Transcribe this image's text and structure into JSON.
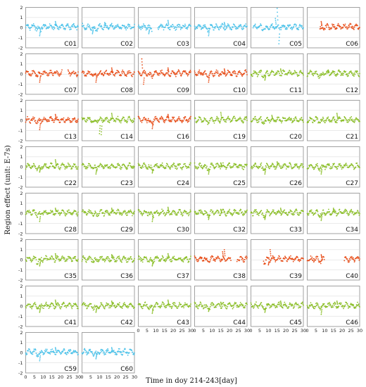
{
  "chart_data": {
    "type": "scatter",
    "xlabel": "Time in doy 214-243[day]",
    "ylabel": "Region effect (unit: E-7s)",
    "xlim": [
      0,
      30
    ],
    "ylim": [
      -2,
      2
    ],
    "x_ticks": [
      "0",
      "5",
      "10",
      "15",
      "20",
      "25",
      "30"
    ],
    "y_ticks": [
      "2",
      "1",
      "0",
      "-1",
      "-2"
    ],
    "grid": true,
    "layout": {
      "rows": 8,
      "cols": 6
    },
    "colors": {
      "blue": "#4ec3ea",
      "red": "#e8501c",
      "green": "#8cbf2a"
    },
    "panels": [
      {
        "label": "C01",
        "color": "blue",
        "gaps": [],
        "spikes": [
          [
            8,
            -0.8
          ],
          [
            17,
            0.6
          ]
        ]
      },
      {
        "label": "C02",
        "color": "blue",
        "gaps": [],
        "spikes": [
          [
            6,
            -0.6
          ],
          [
            13,
            0.5
          ]
        ]
      },
      {
        "label": "C03",
        "color": "blue",
        "gaps": [
          [
            8,
            11
          ]
        ],
        "spikes": [
          [
            6,
            -0.6
          ],
          [
            17,
            0.7
          ]
        ]
      },
      {
        "label": "C04",
        "color": "blue",
        "gaps": [],
        "spikes": [
          [
            8,
            -0.8
          ],
          [
            17,
            0.5
          ]
        ]
      },
      {
        "label": "C05",
        "color": "blue",
        "gaps": [
          [
            0,
            1
          ]
        ],
        "spikes": [
          [
            15,
            1.9
          ],
          [
            16,
            -1.6
          ],
          [
            14,
            0.9
          ]
        ]
      },
      {
        "label": "C06",
        "color": "red",
        "gaps": [
          [
            0,
            7
          ]
        ],
        "spikes": [
          [
            8,
            0.6
          ]
        ]
      },
      {
        "label": "C07",
        "color": "red",
        "gaps": [
          [
            21,
            24
          ]
        ],
        "spikes": [
          [
            8,
            -0.8
          ]
        ]
      },
      {
        "label": "C08",
        "color": "red",
        "gaps": [],
        "spikes": [
          [
            8,
            -0.8
          ],
          [
            17,
            0.6
          ]
        ]
      },
      {
        "label": "C09",
        "color": "red",
        "gaps": [],
        "spikes": [
          [
            2,
            1.5
          ],
          [
            3,
            -1.0
          ],
          [
            17,
            0.6
          ]
        ]
      },
      {
        "label": "C10",
        "color": "red",
        "gaps": [],
        "spikes": [
          [
            8,
            -0.8
          ],
          [
            17,
            0.5
          ]
        ]
      },
      {
        "label": "C11",
        "color": "green",
        "gaps": [],
        "spikes": [
          [
            8,
            -0.6
          ],
          [
            17,
            0.5
          ]
        ]
      },
      {
        "label": "C12",
        "color": "green",
        "gaps": [],
        "spikes": [
          [
            12,
            0.4
          ]
        ]
      },
      {
        "label": "C13",
        "color": "red",
        "gaps": [],
        "spikes": [
          [
            8,
            -0.9
          ],
          [
            17,
            0.6
          ]
        ]
      },
      {
        "label": "C14",
        "color": "green",
        "gaps": [],
        "spikes": [
          [
            10,
            -1.3
          ],
          [
            11,
            -1.4
          ],
          [
            17,
            0.7
          ]
        ]
      },
      {
        "label": "C16",
        "color": "red",
        "gaps": [],
        "spikes": [
          [
            8,
            -0.8
          ],
          [
            17,
            0.6
          ]
        ]
      },
      {
        "label": "C19",
        "color": "green",
        "gaps": [],
        "spikes": [
          [
            15,
            0.8
          ]
        ]
      },
      {
        "label": "C20",
        "color": "green",
        "gaps": [],
        "spikes": [
          [
            12,
            0.5
          ]
        ]
      },
      {
        "label": "C21",
        "color": "green",
        "gaps": [],
        "spikes": [
          [
            17,
            0.7
          ]
        ]
      },
      {
        "label": "C22",
        "color": "green",
        "gaps": [],
        "spikes": [
          [
            17,
            0.7
          ],
          [
            8,
            -0.5
          ]
        ]
      },
      {
        "label": "C23",
        "color": "green",
        "gaps": [],
        "spikes": [
          [
            8,
            -0.7
          ]
        ]
      },
      {
        "label": "C24",
        "color": "green",
        "gaps": [],
        "spikes": [
          [
            8,
            -0.6
          ]
        ]
      },
      {
        "label": "C25",
        "color": "green",
        "gaps": [],
        "spikes": [
          [
            8,
            -0.7
          ],
          [
            15,
            0.4
          ]
        ]
      },
      {
        "label": "C26",
        "color": "green",
        "gaps": [],
        "spikes": [
          [
            8,
            -0.7
          ],
          [
            15,
            0.5
          ]
        ]
      },
      {
        "label": "C27",
        "color": "green",
        "gaps": [],
        "spikes": [
          [
            8,
            -0.7
          ]
        ]
      },
      {
        "label": "C28",
        "color": "green",
        "gaps": [],
        "spikes": [
          [
            8,
            -0.8
          ],
          [
            17,
            0.5
          ]
        ]
      },
      {
        "label": "C29",
        "color": "green",
        "gaps": [],
        "spikes": [
          [
            17,
            0.5
          ]
        ]
      },
      {
        "label": "C30",
        "color": "green",
        "gaps": [],
        "spikes": [
          [
            8,
            -0.8
          ],
          [
            17,
            0.6
          ]
        ]
      },
      {
        "label": "C32",
        "color": "green",
        "gaps": [],
        "spikes": [
          [
            8,
            -0.6
          ],
          [
            15,
            0.4
          ]
        ]
      },
      {
        "label": "C33",
        "color": "green",
        "gaps": [],
        "spikes": [
          [
            8,
            -0.6
          ],
          [
            17,
            0.5
          ]
        ]
      },
      {
        "label": "C34",
        "color": "green",
        "gaps": [],
        "spikes": [
          [
            8,
            -0.7
          ],
          [
            15,
            0.5
          ]
        ]
      },
      {
        "label": "C35",
        "color": "green",
        "gaps": [],
        "spikes": [
          [
            8,
            -0.6
          ],
          [
            17,
            0.6
          ]
        ]
      },
      {
        "label": "C36",
        "color": "green",
        "gaps": [],
        "spikes": [
          [
            17,
            0.5
          ]
        ]
      },
      {
        "label": "C37",
        "color": "green",
        "gaps": [],
        "spikes": [
          [
            17,
            0.6
          ],
          [
            8,
            -0.6
          ]
        ]
      },
      {
        "label": "C38",
        "color": "red",
        "gaps": [
          [
            21,
            24
          ]
        ],
        "spikes": [
          [
            17,
            1.0
          ],
          [
            16,
            0.8
          ]
        ]
      },
      {
        "label": "C39",
        "color": "red",
        "gaps": [
          [
            0,
            7
          ]
        ],
        "spikes": [
          [
            11,
            1.0
          ],
          [
            10,
            -0.5
          ]
        ]
      },
      {
        "label": "C40",
        "color": "red",
        "gaps": [
          [
            10,
            21
          ]
        ],
        "spikes": [
          [
            8,
            0.5
          ]
        ]
      },
      {
        "label": "C41",
        "color": "green",
        "gaps": [],
        "spikes": [
          [
            8,
            -0.6
          ],
          [
            17,
            0.6
          ]
        ]
      },
      {
        "label": "C42",
        "color": "green",
        "gaps": [],
        "spikes": [
          [
            8,
            -0.6
          ],
          [
            17,
            0.5
          ]
        ]
      },
      {
        "label": "C43",
        "color": "green",
        "gaps": [],
        "spikes": [
          [
            8,
            -0.7
          ],
          [
            17,
            0.6
          ]
        ]
      },
      {
        "label": "C44",
        "color": "green",
        "gaps": [],
        "spikes": [
          [
            8,
            -0.5
          ],
          [
            15,
            0.4
          ]
        ]
      },
      {
        "label": "C45",
        "color": "green",
        "gaps": [],
        "spikes": [
          [
            8,
            -0.6
          ],
          [
            17,
            0.5
          ]
        ]
      },
      {
        "label": "C46",
        "color": "green",
        "gaps": [],
        "spikes": [
          [
            8,
            -0.8
          ],
          [
            17,
            0.5
          ]
        ]
      },
      {
        "label": "C59",
        "color": "blue",
        "gaps": [],
        "spikes": [
          [
            8,
            -0.8
          ],
          [
            17,
            0.5
          ]
        ]
      },
      {
        "label": "C60",
        "color": "blue",
        "gaps": [],
        "spikes": [
          [
            8,
            -0.6
          ],
          [
            17,
            0.5
          ]
        ]
      }
    ]
  }
}
